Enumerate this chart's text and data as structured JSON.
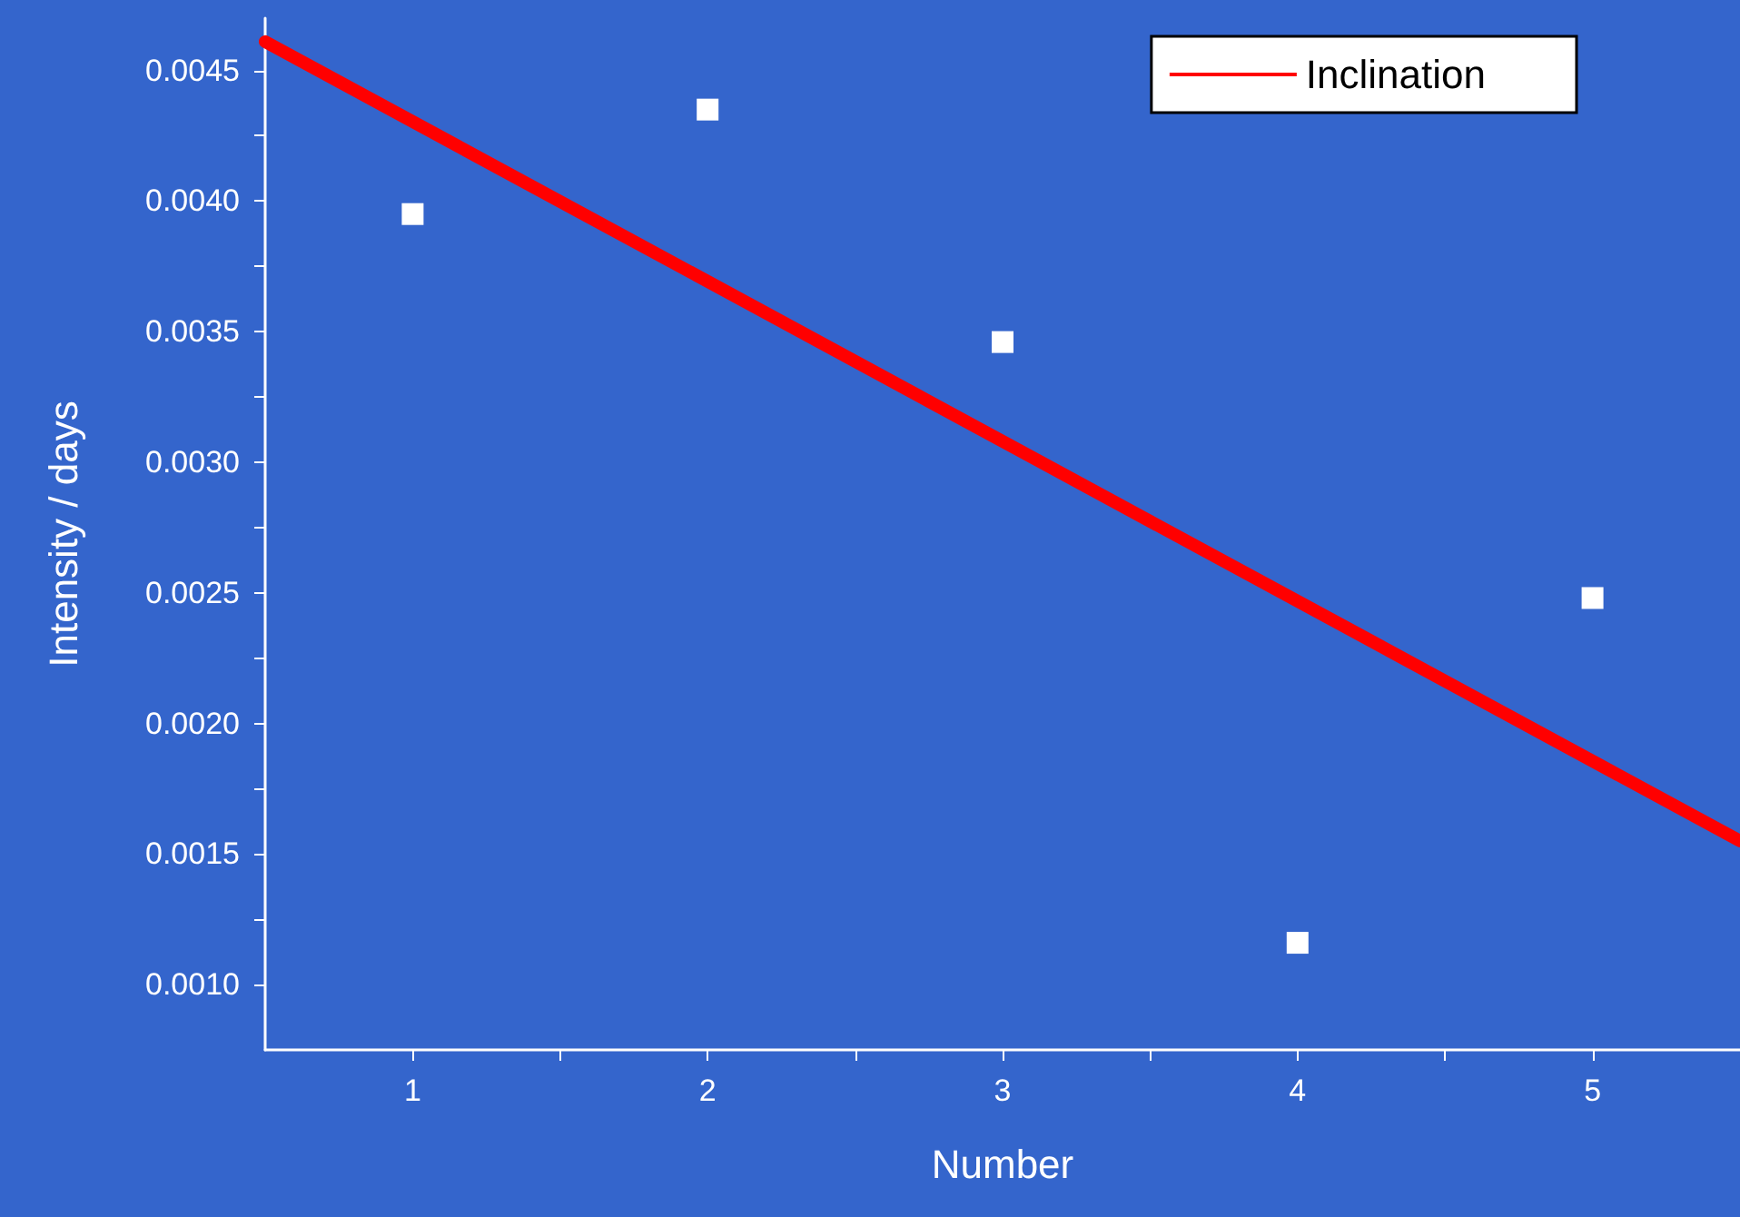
{
  "chart_data": {
    "type": "scatter",
    "xlabel": "Number",
    "ylabel": "Intensity / days",
    "xlim": [
      0.5,
      5.5
    ],
    "xticks": [
      1,
      {
        "value": 1.5,
        "label": null
      },
      2,
      {
        "value": 2.5,
        "label": null
      },
      3,
      {
        "value": 3.5,
        "label": null
      },
      4,
      {
        "value": 4.5,
        "label": null
      },
      5
    ],
    "ylim": [
      0.00075,
      0.0047
    ],
    "yticks": [
      {
        "value": 0.001,
        "label": "0.0010"
      },
      {
        "value": 0.00125,
        "label": null
      },
      {
        "value": 0.0015,
        "label": "0.0015"
      },
      {
        "value": 0.00175,
        "label": null
      },
      {
        "value": 0.002,
        "label": "0.0020"
      },
      {
        "value": 0.00225,
        "label": null
      },
      {
        "value": 0.0025,
        "label": "0.0025"
      },
      {
        "value": 0.00275,
        "label": null
      },
      {
        "value": 0.003,
        "label": "0.0030"
      },
      {
        "value": 0.00325,
        "label": null
      },
      {
        "value": 0.0035,
        "label": "0.0035"
      },
      {
        "value": 0.00375,
        "label": null
      },
      {
        "value": 0.004,
        "label": "0.0040"
      },
      {
        "value": 0.00425,
        "label": null
      },
      {
        "value": 0.0045,
        "label": "0.0045"
      }
    ],
    "series": [
      {
        "color": "#ffffff",
        "marker": "square",
        "x": [
          1,
          2,
          3,
          4,
          5
        ],
        "values": [
          0.00395,
          0.00435,
          0.00346,
          0.00116,
          0.00248
        ]
      },
      {
        "type": "line",
        "name": "Inclination",
        "color": "#ff0000",
        "marker": "none",
        "x": [
          0.5,
          5.5
        ],
        "values": [
          0.00461,
          0.00155
        ]
      }
    ],
    "grid": false,
    "legend": "top right"
  }
}
